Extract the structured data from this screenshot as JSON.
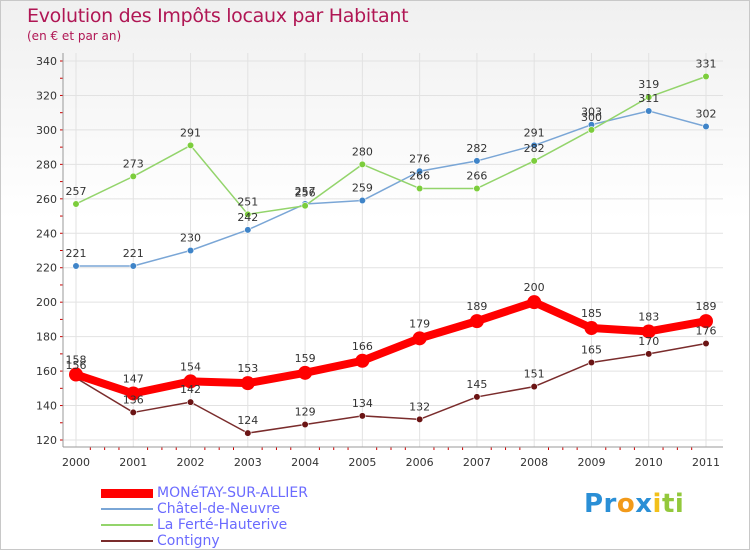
{
  "chart_data": {
    "type": "line",
    "title": "Evolution des Impôts locaux par Habitant",
    "subtitle": "(en € et par an)",
    "categories": [
      "2000",
      "2001",
      "2002",
      "2003",
      "2004",
      "2005",
      "2006",
      "2007",
      "2008",
      "2009",
      "2010",
      "2011"
    ],
    "ylim": [
      120,
      340
    ],
    "yticks": [
      120,
      140,
      160,
      180,
      200,
      220,
      240,
      260,
      280,
      300,
      320,
      340
    ],
    "grid": true,
    "legend_position": "bottom-left",
    "series": [
      {
        "name": "MONéTAY-SUR-ALLIER",
        "color": "#ff0000",
        "marker_color": "#ff0000",
        "values": [
          158,
          147,
          154,
          153,
          159,
          166,
          179,
          189,
          200,
          185,
          183,
          189
        ]
      },
      {
        "name": "Châtel-de-Neuvre",
        "color": "#7aa6d6",
        "marker_color": "#3f84c8",
        "values": [
          221,
          221,
          230,
          242,
          257,
          259,
          276,
          282,
          291,
          303,
          311,
          302
        ]
      },
      {
        "name": "La Ferté-Hauterive",
        "color": "#93d46b",
        "marker_color": "#7ccd3c",
        "values": [
          257,
          273,
          291,
          251,
          256,
          280,
          266,
          266,
          282,
          300,
          319,
          331
        ]
      },
      {
        "name": "Contigny",
        "color": "#7a2c2c",
        "marker_color": "#6b1414",
        "values": [
          156,
          136,
          142,
          124,
          129,
          134,
          132,
          145,
          151,
          165,
          170,
          176
        ]
      }
    ]
  },
  "logo": {
    "text_parts": [
      "Pr",
      "o",
      "x",
      "i",
      "ti"
    ],
    "colors": [
      "#2a8fd6",
      "#f29a1a",
      "#2a8fd6",
      "#f2c01a",
      "#93c83c"
    ]
  }
}
